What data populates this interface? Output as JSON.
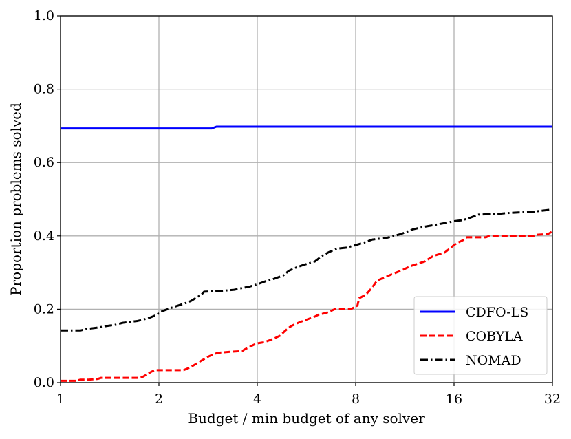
{
  "chart_data": {
    "type": "line",
    "title": "",
    "xlabel": "Budget / min budget of any solver",
    "ylabel": "Proportion problems solved",
    "xscale": "log2",
    "xlim": [
      1,
      32
    ],
    "ylim": [
      0.0,
      1.0
    ],
    "xticks": [
      1,
      2,
      4,
      8,
      16,
      32
    ],
    "xtick_labels": [
      "1",
      "2",
      "4",
      "8",
      "16",
      "32"
    ],
    "yticks": [
      0.0,
      0.2,
      0.4,
      0.6,
      0.8,
      1.0
    ],
    "ytick_labels": [
      "0.0",
      "0.2",
      "0.4",
      "0.6",
      "0.8",
      "1.0"
    ],
    "grid": true,
    "legend_position": "lower-right",
    "series": [
      {
        "name": "CDFO-LS",
        "color": "#0000ff",
        "style": "solid",
        "x": [
          1,
          2.9,
          3.0,
          32
        ],
        "y": [
          0.693,
          0.693,
          0.698,
          0.698
        ]
      },
      {
        "name": "COBYLA",
        "color": "#ff0000",
        "style": "dashed",
        "x": [
          1,
          1.12,
          1.15,
          1.22,
          1.3,
          1.33,
          1.72,
          1.78,
          1.9,
          1.95,
          2.38,
          2.5,
          2.7,
          2.85,
          3.0,
          3.1,
          3.3,
          3.6,
          3.65,
          3.9,
          4.0,
          4.2,
          4.5,
          4.7,
          4.85,
          5.0,
          5.1,
          5.4,
          5.6,
          6.0,
          6.15,
          6.5,
          6.7,
          6.9,
          7.0,
          7.6,
          7.8,
          8.1,
          8.2,
          8.6,
          9.0,
          9.3,
          10.0,
          10.3,
          11.0,
          11.8,
          13.0,
          13.8,
          15.0,
          16.0,
          16.3,
          17.2,
          17.5,
          20.0,
          20.5,
          28.0,
          28.6,
          31.0,
          32.0
        ],
        "y": [
          0.005,
          0.005,
          0.008,
          0.008,
          0.01,
          0.013,
          0.013,
          0.015,
          0.03,
          0.034,
          0.034,
          0.042,
          0.06,
          0.072,
          0.08,
          0.082,
          0.084,
          0.086,
          0.09,
          0.103,
          0.107,
          0.11,
          0.12,
          0.128,
          0.14,
          0.15,
          0.155,
          0.165,
          0.17,
          0.18,
          0.185,
          0.19,
          0.195,
          0.2,
          0.2,
          0.2,
          0.202,
          0.21,
          0.23,
          0.24,
          0.26,
          0.278,
          0.29,
          0.295,
          0.305,
          0.318,
          0.33,
          0.345,
          0.355,
          0.375,
          0.38,
          0.39,
          0.396,
          0.396,
          0.4,
          0.4,
          0.403,
          0.405,
          0.412
        ]
      },
      {
        "name": "NOMAD",
        "color": "#000000",
        "style": "dashdot",
        "x": [
          1,
          1.15,
          1.2,
          1.3,
          1.4,
          1.48,
          1.55,
          1.72,
          1.85,
          1.95,
          2.05,
          2.2,
          2.38,
          2.5,
          2.7,
          2.75,
          3.1,
          3.4,
          3.6,
          3.8,
          4.0,
          4.2,
          4.5,
          4.8,
          5.0,
          5.2,
          5.5,
          6.0,
          6.3,
          6.6,
          7.0,
          7.5,
          8.0,
          8.5,
          9.0,
          10.0,
          11.0,
          12.0,
          13.0,
          14.0,
          15.0,
          16.0,
          17.0,
          18.0,
          19.0,
          22.0,
          23.0,
          28.0,
          30.0,
          32.0
        ],
        "y": [
          0.142,
          0.142,
          0.146,
          0.15,
          0.155,
          0.158,
          0.163,
          0.168,
          0.175,
          0.183,
          0.195,
          0.205,
          0.215,
          0.222,
          0.24,
          0.248,
          0.25,
          0.253,
          0.258,
          0.262,
          0.268,
          0.275,
          0.283,
          0.292,
          0.305,
          0.312,
          0.32,
          0.33,
          0.345,
          0.355,
          0.365,
          0.368,
          0.375,
          0.382,
          0.39,
          0.395,
          0.405,
          0.418,
          0.425,
          0.43,
          0.435,
          0.44,
          0.443,
          0.45,
          0.458,
          0.46,
          0.462,
          0.466,
          0.469,
          0.472
        ]
      }
    ]
  }
}
